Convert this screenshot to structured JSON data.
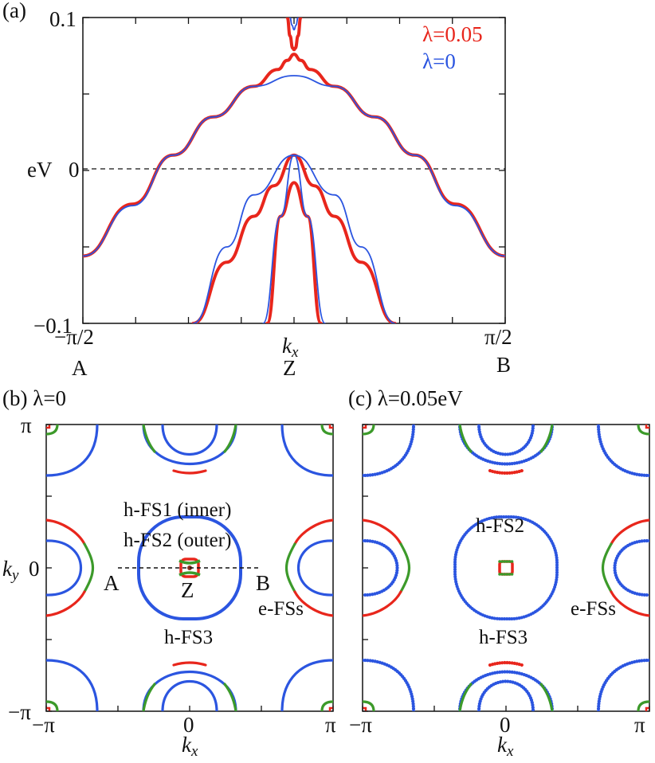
{
  "chart_data": [
    {
      "type": "line",
      "panel_label": "(a)",
      "title": "",
      "xlabel": "k",
      "xlabel_sub": "x",
      "ylabel": "eV",
      "xlim": [
        -1.5708,
        1.5708
      ],
      "ylim": [
        -0.1,
        0.1
      ],
      "xticks": [
        "−π/2",
        "π/2"
      ],
      "yticks": [
        "0.1",
        "0",
        "−0.1"
      ],
      "point_labels": [
        "A",
        "Z",
        "B"
      ],
      "fermi_level": 0,
      "legend": [
        {
          "name": "λ=0.05",
          "color": "#e8261c"
        },
        {
          "name": "λ=0",
          "color": "#2b55e0"
        }
      ],
      "series": [
        {
          "name": "λ=0.05 outer band",
          "color": "#e8261c",
          "x": [
            -1.5708,
            -1.2,
            -0.9,
            -0.6,
            -0.3,
            -0.12,
            -0.05,
            0,
            0.05,
            0.12,
            0.3,
            0.6,
            0.9,
            1.2,
            1.5708
          ],
          "y": [
            -0.056,
            -0.022,
            0.01,
            0.035,
            0.055,
            0.066,
            0.072,
            0.076,
            0.072,
            0.066,
            0.055,
            0.035,
            0.01,
            -0.022,
            -0.056
          ]
        },
        {
          "name": "λ=0.05 upper band",
          "color": "#e8261c",
          "x": [
            -0.05,
            -0.03,
            -0.01,
            0,
            0.01,
            0.03,
            0.05
          ],
          "y": [
            0.1,
            0.088,
            0.08,
            0.079,
            0.08,
            0.088,
            0.1
          ]
        },
        {
          "name": "λ=0.05 hole band 2",
          "color": "#e8261c",
          "x": [
            -0.75,
            -0.5,
            -0.3,
            -0.15,
            0,
            0.15,
            0.3,
            0.5,
            0.75
          ],
          "y": [
            -0.1,
            -0.06,
            -0.03,
            -0.01,
            0.01,
            -0.01,
            -0.03,
            -0.06,
            -0.1
          ]
        },
        {
          "name": "λ=0.05 hole band 1",
          "color": "#e8261c",
          "x": [
            -0.2,
            -0.1,
            0,
            0.1,
            0.2
          ],
          "y": [
            -0.1,
            -0.03,
            -0.008,
            -0.03,
            -0.1
          ]
        },
        {
          "name": "λ=0 outer band",
          "color": "#2b55e0",
          "x": [
            -1.5708,
            -1.2,
            -0.9,
            -0.6,
            -0.3,
            0,
            0.3,
            0.6,
            0.9,
            1.2,
            1.5708
          ],
          "y": [
            -0.056,
            -0.023,
            0.01,
            0.035,
            0.055,
            0.062,
            0.055,
            0.035,
            0.01,
            -0.023,
            -0.056
          ]
        },
        {
          "name": "λ=0 upper band",
          "color": "#2b55e0",
          "x": [
            -0.03,
            -0.015,
            0,
            0.015,
            0.03
          ],
          "y": [
            0.1,
            0.095,
            0.092,
            0.095,
            0.1
          ]
        },
        {
          "name": "λ=0 hole band 2",
          "color": "#2b55e0",
          "x": [
            -0.75,
            -0.5,
            -0.3,
            0,
            0.3,
            0.5,
            0.75
          ],
          "y": [
            -0.1,
            -0.05,
            -0.016,
            0.01,
            -0.016,
            -0.05,
            -0.1
          ]
        },
        {
          "name": "λ=0 hole band 1",
          "color": "#2b55e0",
          "x": [
            -0.23,
            -0.1,
            0,
            0.1,
            0.23
          ],
          "y": [
            -0.1,
            -0.03,
            0.01,
            -0.03,
            -0.1
          ]
        }
      ]
    },
    {
      "type": "scatter",
      "panel_label": "(b) λ=0",
      "title": "λ=0",
      "xlabel": "k",
      "xlabel_sub": "x",
      "ylabel": "k",
      "ylabel_sub": "y",
      "xlim": [
        -3.1416,
        3.1416
      ],
      "ylim": [
        -3.1416,
        3.1416
      ],
      "xticks": [
        "−π",
        "0",
        "π"
      ],
      "yticks": [
        "π",
        "0",
        "−π"
      ],
      "path_labels": [
        "A",
        "Z",
        "B"
      ],
      "annotations": [
        "h-FS1 (inner)",
        "h-FS2 (outer)",
        "h-FS3",
        "e-FSs"
      ],
      "orbital_colors": {
        "red": "#e8261c",
        "green": "#3c9a2a",
        "blue": "#2b55e0"
      }
    },
    {
      "type": "scatter",
      "panel_label": "(c) λ=0.05eV",
      "title": "λ=0.05eV",
      "xlabel": "k",
      "xlabel_sub": "x",
      "xlim": [
        -3.1416,
        3.1416
      ],
      "ylim": [
        -3.1416,
        3.1416
      ],
      "xticks": [
        "−π",
        "0",
        "π"
      ],
      "annotations": [
        "h-FS2",
        "h-FS3",
        "e-FSs"
      ],
      "orbital_colors": {
        "red": "#e8261c",
        "green": "#3c9a2a",
        "blue": "#2b55e0"
      }
    }
  ]
}
